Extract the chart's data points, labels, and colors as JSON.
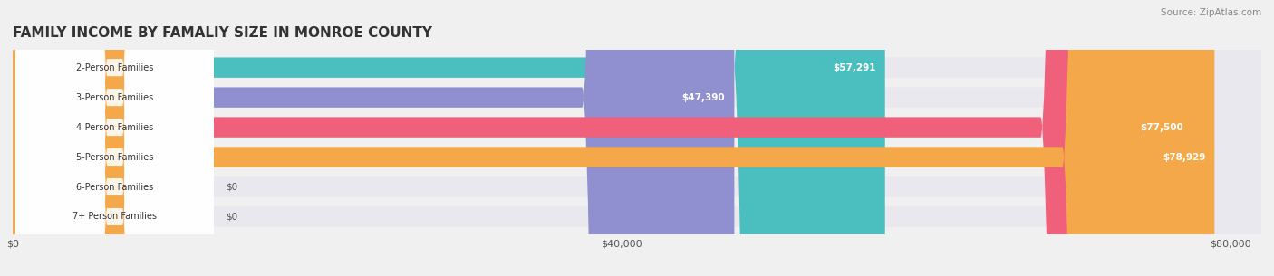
{
  "title": "FAMILY INCOME BY FAMALIY SIZE IN MONROE COUNTY",
  "source": "Source: ZipAtlas.com",
  "categories": [
    "2-Person Families",
    "3-Person Families",
    "4-Person Families",
    "5-Person Families",
    "6-Person Families",
    "7+ Person Families"
  ],
  "values": [
    57291,
    47390,
    77500,
    78929,
    0,
    0
  ],
  "bar_colors": [
    "#4BBFBF",
    "#9090D0",
    "#F0607A",
    "#F5A84A",
    "#F0A0A8",
    "#A0B8D8"
  ],
  "background_color": "#f0f0f0",
  "bar_bg_color": "#e8e8ee",
  "xlim": [
    0,
    82000
  ],
  "xticks": [
    0,
    40000,
    80000
  ],
  "xtick_labels": [
    "$0",
    "$40,000",
    "$80,000"
  ],
  "value_labels": [
    "$57,291",
    "$47,390",
    "$77,500",
    "$78,929",
    "$0",
    "$0"
  ],
  "title_fontsize": 11,
  "bar_height": 0.68,
  "figsize": [
    14.06,
    3.05
  ],
  "dpi": 100
}
